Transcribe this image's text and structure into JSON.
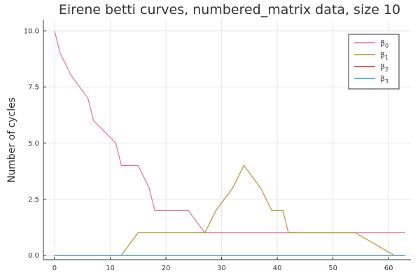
{
  "chart_data": {
    "type": "line",
    "title": "Eirene betti curves, numbered_matrix data, size 10",
    "xlabel": "",
    "ylabel": "Number of cycles",
    "xlim": [
      -2,
      64
    ],
    "ylim": [
      -0.2,
      10.5
    ],
    "xticks": [
      0,
      10,
      20,
      30,
      40,
      50,
      60
    ],
    "yticks": [
      0.0,
      2.5,
      5.0,
      7.5,
      10.0
    ],
    "ytick_labels": [
      "0.0",
      "2.5",
      "5.0",
      "7.5",
      "10.0"
    ],
    "grid": true,
    "legend_position": "top-right",
    "series": [
      {
        "name": "β",
        "subscript": "0",
        "color": "#e26f9c",
        "x": [
          0,
          1,
          3,
          6,
          7,
          11,
          12,
          15,
          17,
          18,
          24,
          27,
          63
        ],
        "y": [
          10,
          9,
          8,
          7,
          6,
          5,
          4,
          4,
          3,
          2,
          2,
          1,
          1
        ]
      },
      {
        "name": "β",
        "subscript": "1",
        "color": "#b8942a",
        "x": [
          0,
          12,
          15,
          27,
          29,
          32,
          34,
          37,
          39,
          41,
          42,
          54,
          61,
          63
        ],
        "y": [
          0,
          0,
          1,
          1,
          2,
          3,
          4,
          3,
          2,
          2,
          1,
          1,
          0,
          0
        ]
      },
      {
        "name": "β",
        "subscript": "2",
        "color": "#d62728",
        "x": [
          0,
          63
        ],
        "y": [
          0,
          0
        ]
      },
      {
        "name": "β",
        "subscript": "3",
        "color": "#2c9fd4",
        "x": [
          0,
          63
        ],
        "y": [
          0,
          0
        ]
      }
    ]
  }
}
